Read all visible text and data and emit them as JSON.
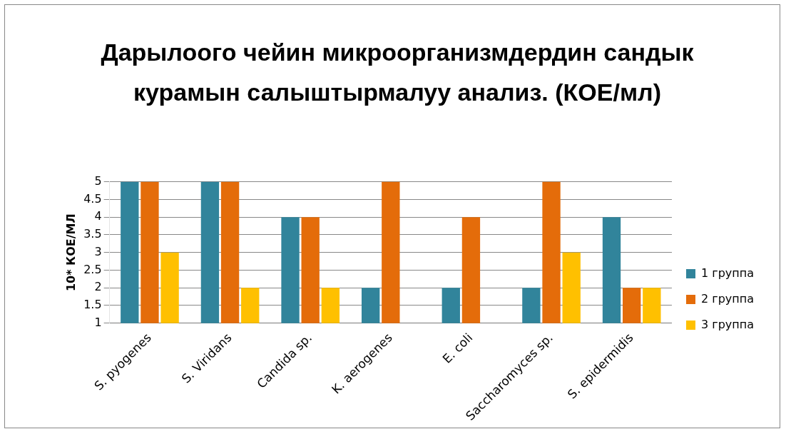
{
  "chart_data": {
    "type": "bar",
    "title": "Дарылоого чейин микроорганизмдердин сандык курамын салыштырмалуу анализ. (КОЕ/мл)",
    "ylabel": "10* КОЕ/МЛ",
    "categories": [
      "S. pyogenes",
      "S. Viridans",
      "Candida sp.",
      "K. aerogenes",
      "E. coli",
      "Saccharomyces sp.",
      "S. epidermidis"
    ],
    "series": [
      {
        "name": "1 группа",
        "color": "#31849b",
        "values": [
          5,
          5,
          4,
          2,
          2,
          2,
          4
        ]
      },
      {
        "name": "2 группа",
        "color": "#e46c0a",
        "values": [
          5,
          5,
          4,
          5,
          4,
          5,
          2
        ]
      },
      {
        "name": "3 группа",
        "color": "#ffc000",
        "values": [
          3,
          2,
          2,
          null,
          null,
          3,
          2
        ]
      }
    ],
    "ylim": [
      1,
      5
    ],
    "yticks": [
      1,
      1.5,
      2,
      2.5,
      3,
      3.5,
      4,
      4.5,
      5
    ],
    "grid": "y",
    "legend": "right"
  }
}
